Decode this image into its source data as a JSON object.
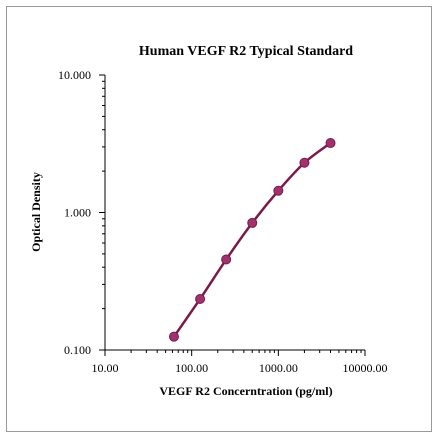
{
  "chart_data": {
    "type": "line",
    "title": "Human VEGF R2 Typical Standard",
    "xlabel": "VEGF R2 Concerntration (pg/ml)",
    "ylabel": "Optical Density",
    "x_scale": "log",
    "y_scale": "log",
    "xlim": [
      10,
      10000
    ],
    "ylim": [
      0.1,
      10
    ],
    "x_ticks": [
      10,
      100,
      1000,
      10000
    ],
    "x_tick_labels": [
      "10.00",
      "100.00",
      "1000.00",
      "10000.00"
    ],
    "y_ticks": [
      0.1,
      1,
      10
    ],
    "y_tick_labels": [
      "0.100",
      "1.000",
      "10.000"
    ],
    "grid": false,
    "series": [
      {
        "x": [
          62.5,
          125,
          250,
          500,
          1000,
          2000,
          4000
        ],
        "y": [
          0.125,
          0.235,
          0.455,
          0.84,
          1.44,
          2.3,
          3.2
        ],
        "color": "#7b1a4a",
        "marker_color": "#a0326e"
      }
    ]
  }
}
